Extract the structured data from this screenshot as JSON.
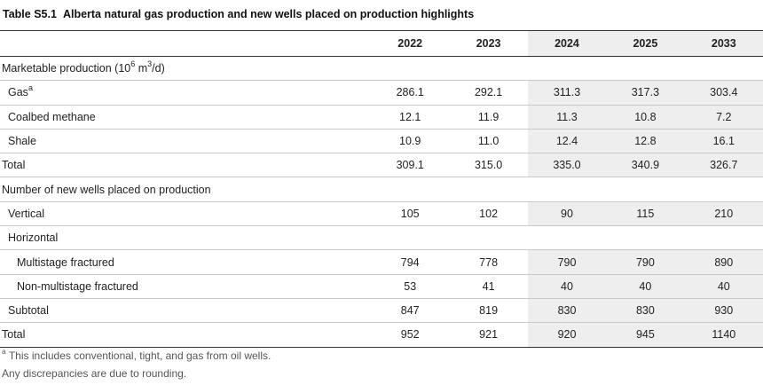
{
  "table": {
    "number": "Table S5.1",
    "title": "Alberta natural gas production and new wells placed on production highlights",
    "years": [
      "2022",
      "2023",
      "2024",
      "2025",
      "2033"
    ],
    "sections": {
      "production_heading_pre": "Marketable production (10",
      "production_heading_exp1": "6",
      "production_heading_mid": " m",
      "production_heading_exp2": "3",
      "production_heading_post": "/d)",
      "wells_heading": "Number of new wells placed on production"
    },
    "rows": [
      {
        "label": "Gas",
        "sup": "a",
        "values": [
          "286.1",
          "292.1",
          "311.3",
          "317.3",
          "303.4"
        ]
      },
      {
        "label": "Coalbed methane",
        "values": [
          "12.1",
          "11.9",
          "11.3",
          "10.8",
          "7.2"
        ]
      },
      {
        "label": "Shale",
        "values": [
          "10.9",
          "11.0",
          "12.4",
          "12.8",
          "16.1"
        ]
      },
      {
        "label": "Total",
        "values": [
          "309.1",
          "315.0",
          "335.0",
          "340.9",
          "326.7"
        ]
      },
      {
        "label": "Vertical",
        "values": [
          "105",
          "102",
          "90",
          "115",
          "210"
        ]
      },
      {
        "label": "Horizontal"
      },
      {
        "label": "Multistage fractured",
        "values": [
          "794",
          "778",
          "790",
          "790",
          "890"
        ]
      },
      {
        "label": "Non-multistage fractured",
        "values": [
          "53",
          "41",
          "40",
          "40",
          "40"
        ]
      },
      {
        "label": "Subtotal",
        "values": [
          "847",
          "819",
          "830",
          "830",
          "930"
        ]
      },
      {
        "label": "Total",
        "values": [
          "952",
          "921",
          "920",
          "945",
          "1140"
        ]
      }
    ]
  },
  "notes": {
    "footnote_marker": "a",
    "footnote_text": " This includes conventional, tight, and gas from oil wells.",
    "rounding": "Any discrepancies are due to rounding."
  }
}
